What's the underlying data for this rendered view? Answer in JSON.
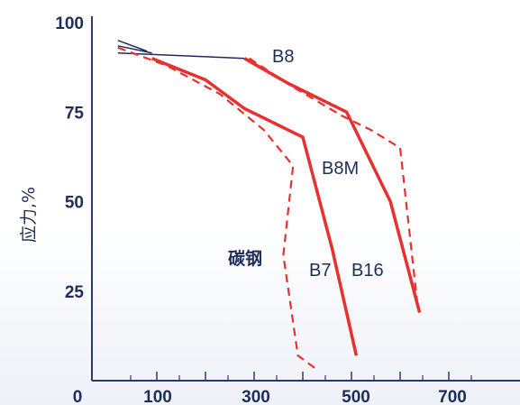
{
  "chart_data": {
    "type": "line",
    "ylabel": "应力,%",
    "xlim": [
      0,
      800
    ],
    "ylim": [
      0,
      100
    ],
    "x_ticks": [
      0,
      100,
      300,
      500,
      700
    ],
    "y_ticks": [
      25,
      50,
      75,
      100
    ],
    "minor_x_ticks": [
      100,
      200,
      300,
      400,
      500,
      600,
      700
    ],
    "annotation": "碳钢",
    "colors": {
      "axis": "#2b3a6b",
      "solid": "#e8302f",
      "dashed": "#e8302f",
      "thin": "#1f2d5c"
    },
    "series": [
      {
        "name": "B8",
        "style": "thin",
        "x": [
          20,
          280
        ],
        "y": [
          91.5,
          90
        ]
      },
      {
        "name": "",
        "style": "thin",
        "x": [
          20,
          80
        ],
        "y": [
          95,
          92
        ]
      },
      {
        "name": "",
        "style": "thin",
        "x": [
          20,
          90
        ],
        "y": [
          93.5,
          91.5
        ]
      },
      {
        "name": "B8M",
        "style": "solid",
        "x": [
          280,
          370,
          490,
          580,
          640
        ],
        "y": [
          90,
          83,
          75,
          50,
          19
        ]
      },
      {
        "name": "",
        "style": "dashed",
        "x": [
          290,
          380,
          480,
          540,
          600,
          635
        ],
        "y": [
          90,
          82,
          74,
          70,
          65,
          22
        ]
      },
      {
        "name": "B16",
        "style": "solid",
        "x": [
          90,
          200,
          280,
          400,
          460,
          510
        ],
        "y": [
          90,
          84,
          76,
          68,
          37,
          7
        ]
      },
      {
        "name": "B7",
        "style": "dashed",
        "x": [
          20,
          120,
          230,
          320,
          380,
          360,
          390,
          430
        ],
        "y": [
          93,
          88,
          80,
          70,
          60,
          35,
          7,
          3
        ]
      }
    ],
    "label_positions_note": "",
    "series_labels": [
      "B8",
      "B8M",
      "B7",
      "B16"
    ]
  }
}
